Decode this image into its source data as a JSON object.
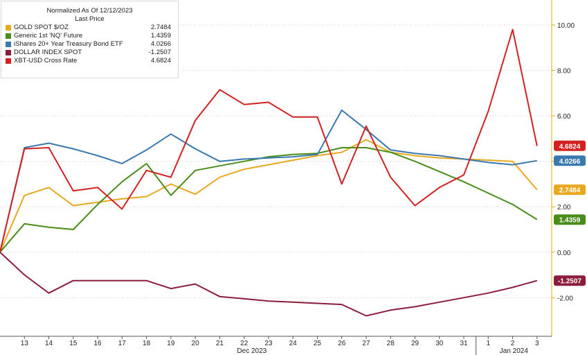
{
  "chart_data": {
    "type": "line",
    "title": "Normalized As Of 12/12/2023",
    "subtitle": "Last Price",
    "x": [
      "12/12",
      "12/13",
      "12/14",
      "12/15",
      "12/16",
      "12/17",
      "12/18",
      "12/19",
      "12/20",
      "12/21",
      "12/22",
      "12/23",
      "12/24",
      "12/25",
      "12/26",
      "12/27",
      "12/28",
      "12/29",
      "12/30",
      "12/31",
      "1/1",
      "1/2",
      "1/3"
    ],
    "x_tick_labels": [
      "13",
      "14",
      "15",
      "16",
      "17",
      "18",
      "19",
      "20",
      "21",
      "22",
      "23",
      "24",
      "25",
      "26",
      "27",
      "28",
      "29",
      "30",
      "31",
      "1",
      "2",
      "3"
    ],
    "period_labels": [
      "Dec 2023",
      "Jan 2024"
    ],
    "y_ticks": [
      "10.00",
      "8.00",
      "6.00",
      "4.00",
      "2.00",
      "0.00",
      "-2.00"
    ],
    "ylim": [
      -3.7,
      11.1
    ],
    "series": [
      {
        "name": "GOLD SPOT $/OZ",
        "color": "#e8a920",
        "last": "2.7484",
        "values": [
          0,
          2.5,
          2.85,
          2.05,
          2.2,
          2.35,
          2.45,
          3.0,
          2.55,
          3.3,
          3.65,
          3.85,
          4.05,
          4.25,
          4.4,
          4.95,
          4.4,
          4.25,
          4.15,
          4.1,
          4.05,
          4.0,
          2.75
        ]
      },
      {
        "name": "Generic 1st 'NQ' Future",
        "color": "#4a8c1a",
        "last": "1.4359",
        "values": [
          0,
          1.25,
          1.1,
          1.0,
          2.1,
          3.1,
          3.9,
          2.5,
          3.6,
          3.8,
          4.0,
          4.2,
          4.3,
          4.35,
          4.6,
          4.6,
          4.4,
          4.0,
          3.55,
          3.1,
          2.6,
          2.1,
          1.44
        ]
      },
      {
        "name": "iShares 20+ Year Treasury Bond ETF",
        "color": "#3a78b0",
        "last": "4.0266",
        "values": [
          0,
          4.6,
          4.8,
          4.55,
          4.25,
          3.9,
          4.5,
          5.2,
          4.55,
          4.0,
          4.1,
          4.15,
          4.2,
          4.3,
          6.25,
          5.4,
          4.5,
          4.35,
          4.25,
          4.1,
          3.95,
          3.85,
          4.03
        ]
      },
      {
        "name": "DOLLAR INDEX SPOT",
        "color": "#8c1c3c",
        "last": "-1.2507",
        "values": [
          0,
          -1.0,
          -1.8,
          -1.25,
          -1.25,
          -1.25,
          -1.25,
          -1.6,
          -1.4,
          -1.95,
          -2.05,
          -2.15,
          -2.2,
          -2.25,
          -2.3,
          -2.8,
          -2.55,
          -2.4,
          -2.2,
          -2.0,
          -1.8,
          -1.55,
          -1.25
        ]
      },
      {
        "name": "XBT-USD Cross Rate",
        "color": "#d32020",
        "last": "4.6824",
        "values": [
          0,
          4.55,
          4.6,
          2.7,
          2.85,
          1.9,
          3.6,
          3.3,
          5.8,
          7.15,
          6.5,
          6.6,
          5.95,
          5.95,
          3.0,
          5.55,
          3.3,
          2.05,
          2.85,
          3.4,
          6.2,
          9.8,
          4.68
        ]
      }
    ],
    "value_labels_order": [
      "XBT-USD Cross Rate",
      "iShares 20+ Year Treasury Bond ETF",
      "GOLD SPOT $/OZ",
      "Generic 1st 'NQ' Future",
      "DOLLAR INDEX SPOT"
    ],
    "grid": "horizontal dotted",
    "legend": "top-left"
  }
}
